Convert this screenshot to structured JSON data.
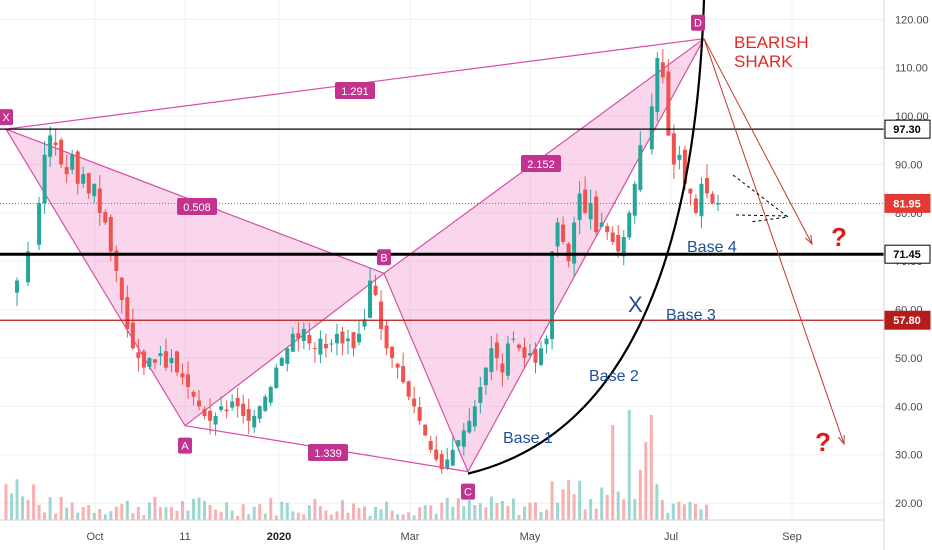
{
  "chart_data": {
    "type": "candlestick",
    "title": "BEARISH SHARK",
    "yaxis": {
      "ticks": [
        20,
        30,
        40,
        50,
        60,
        70,
        80,
        90,
        100,
        110,
        120
      ],
      "tick_labels": [
        "20.00",
        "30.00",
        "40.00",
        "50.00",
        "60.00",
        "70.00",
        "80.00",
        "90.00",
        "100.00",
        "110.00",
        "120.00"
      ],
      "range": [
        16.5,
        124
      ]
    },
    "xaxis": {
      "labels": [
        "Oct",
        "11",
        "2020",
        "Mar",
        "May",
        "Jul",
        "Sep"
      ],
      "bold_labels": [
        "2020"
      ]
    },
    "price_lines": [
      {
        "value": 97.3,
        "label": "97.30",
        "color": "#000000"
      },
      {
        "value": 81.95,
        "label": "81.95",
        "color": "#e53935"
      },
      {
        "value": 71.45,
        "label": "71.45",
        "color": "#000000"
      },
      {
        "value": 57.8,
        "label": "57.80",
        "color": "#b71c1c"
      }
    ],
    "pattern_points": [
      {
        "label": "X",
        "value": 97.3
      },
      {
        "label": "A",
        "value": 36.0
      },
      {
        "label": "B",
        "value": 67.5
      },
      {
        "label": "C",
        "value": 26.5
      },
      {
        "label": "D",
        "value": 116.0
      }
    ],
    "ratios": [
      {
        "label": "1.291",
        "legs": "XA-XD"
      },
      {
        "label": "0.508",
        "legs": "XA-AB"
      },
      {
        "label": "2.152",
        "legs": "BC-CD"
      },
      {
        "label": "1.339",
        "legs": "AB-AC"
      }
    ],
    "annotations": [
      "Base 1",
      "Base 2",
      "Base 3",
      "Base 4",
      "X",
      "?",
      "?"
    ],
    "price_path": [
      [
        0,
        64
      ],
      [
        2,
        66
      ],
      [
        4,
        72
      ],
      [
        6,
        82
      ],
      [
        7,
        92
      ],
      [
        8,
        96
      ],
      [
        9,
        94
      ],
      [
        10,
        90
      ],
      [
        11,
        88
      ],
      [
        12,
        92
      ],
      [
        13,
        86
      ],
      [
        14,
        88
      ],
      [
        15,
        84
      ],
      [
        16,
        86
      ],
      [
        17,
        80
      ],
      [
        18,
        78
      ],
      [
        19,
        72
      ],
      [
        20,
        68
      ],
      [
        21,
        62
      ],
      [
        22,
        56
      ],
      [
        23,
        52
      ],
      [
        24,
        50
      ],
      [
        25,
        48
      ],
      [
        26,
        50
      ],
      [
        27,
        49
      ],
      [
        28,
        51
      ],
      [
        29,
        48
      ],
      [
        30,
        50
      ],
      [
        31,
        47
      ],
      [
        32,
        46
      ],
      [
        33,
        44
      ],
      [
        34,
        42
      ],
      [
        35,
        40
      ],
      [
        36,
        38
      ],
      [
        37,
        37
      ],
      [
        38,
        38
      ],
      [
        39,
        40
      ],
      [
        40,
        39
      ],
      [
        41,
        41
      ],
      [
        42,
        40
      ],
      [
        43,
        38
      ],
      [
        44,
        37
      ],
      [
        45,
        38
      ],
      [
        46,
        40
      ],
      [
        47,
        42
      ],
      [
        48,
        44
      ],
      [
        49,
        48
      ],
      [
        50,
        50
      ],
      [
        51,
        52
      ],
      [
        52,
        55
      ],
      [
        53,
        54
      ],
      [
        54,
        56
      ],
      [
        55,
        53
      ],
      [
        56,
        52
      ],
      [
        57,
        54
      ],
      [
        58,
        52
      ],
      [
        59,
        53
      ],
      [
        60,
        55
      ],
      [
        61,
        53
      ],
      [
        62,
        54
      ],
      [
        63,
        52
      ],
      [
        64,
        55
      ],
      [
        65,
        58
      ],
      [
        66,
        66
      ],
      [
        67,
        63
      ],
      [
        68,
        56
      ],
      [
        69,
        52
      ],
      [
        70,
        50
      ],
      [
        71,
        48
      ],
      [
        72,
        45
      ],
      [
        73,
        42
      ],
      [
        74,
        40
      ],
      [
        75,
        37
      ],
      [
        76,
        34
      ],
      [
        77,
        31
      ],
      [
        78,
        29
      ],
      [
        79,
        27
      ],
      [
        80,
        29
      ],
      [
        81,
        31
      ],
      [
        82,
        33
      ],
      [
        83,
        35
      ],
      [
        84,
        37
      ],
      [
        85,
        40
      ],
      [
        86,
        44
      ],
      [
        87,
        48
      ],
      [
        88,
        52
      ],
      [
        89,
        50
      ],
      [
        90,
        47
      ],
      [
        91,
        53
      ],
      [
        92,
        54
      ],
      [
        93,
        52
      ],
      [
        94,
        50
      ],
      [
        95,
        51
      ],
      [
        96,
        49
      ],
      [
        97,
        52
      ],
      [
        98,
        54
      ],
      [
        99,
        72
      ],
      [
        100,
        78
      ],
      [
        101,
        74
      ],
      [
        102,
        70
      ],
      [
        103,
        78
      ],
      [
        104,
        84
      ],
      [
        105,
        80
      ],
      [
        106,
        82
      ],
      [
        107,
        76
      ],
      [
        108,
        78
      ],
      [
        109,
        76
      ],
      [
        110,
        74
      ],
      [
        111,
        72
      ],
      [
        112,
        75
      ],
      [
        113,
        80
      ],
      [
        114,
        86
      ],
      [
        115,
        94
      ],
      [
        116,
        102
      ],
      [
        117,
        112
      ],
      [
        118,
        108
      ],
      [
        119,
        96
      ],
      [
        120,
        90
      ],
      [
        121,
        92
      ],
      [
        122,
        86
      ],
      [
        123,
        84
      ],
      [
        124,
        80
      ],
      [
        125,
        86
      ],
      [
        126,
        84
      ],
      [
        127,
        82
      ],
      [
        128,
        82
      ]
    ],
    "grid": true,
    "legend": "none"
  }
}
